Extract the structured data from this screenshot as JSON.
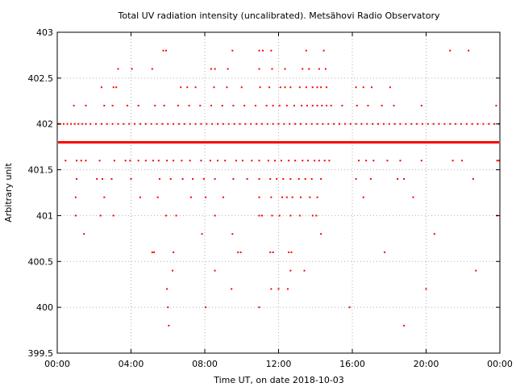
{
  "chart_data": {
    "type": "scatter",
    "title": "Total UV radiation intensity (uncalibrated). Metsähovi Radio Observatory",
    "xlabel": "Time UT, on date 2018-10-03",
    "ylabel": "Arbitrary unit",
    "xlim": [
      0,
      24
    ],
    "ylim": [
      399.5,
      403
    ],
    "x_ticks": [
      0,
      4,
      8,
      12,
      16,
      20,
      24
    ],
    "x_tick_labels": [
      "00:00",
      "04:00",
      "08:00",
      "12:00",
      "16:00",
      "20:00",
      "00:00"
    ],
    "y_ticks": [
      399.5,
      400,
      400.5,
      401,
      401.5,
      402,
      402.5,
      403
    ],
    "y_tick_labels": [
      "399.5",
      "400",
      "400.5",
      "401",
      "401.5",
      "402",
      "402.5",
      "403"
    ],
    "grid": true,
    "marker_color": "#ff0000",
    "series": [
      {
        "baseline_y": 401.8,
        "baseline_coverage": "continuous from 00:00 to 00:00",
        "points": [
          [
            0.05,
            402.0
          ],
          [
            0.15,
            402.0
          ],
          [
            0.35,
            402.0
          ],
          [
            0.55,
            402.0
          ],
          [
            0.75,
            402.0
          ],
          [
            0.95,
            402.0
          ],
          [
            1.15,
            402.0
          ],
          [
            1.35,
            402.0
          ],
          [
            1.55,
            402.0
          ],
          [
            1.8,
            402.0
          ],
          [
            2.1,
            402.0
          ],
          [
            2.4,
            402.0
          ],
          [
            2.7,
            402.0
          ],
          [
            3.0,
            402.0
          ],
          [
            3.3,
            402.0
          ],
          [
            3.6,
            402.0
          ],
          [
            3.9,
            402.0
          ],
          [
            4.2,
            402.0
          ],
          [
            4.5,
            402.0
          ],
          [
            4.8,
            402.0
          ],
          [
            5.1,
            402.0
          ],
          [
            5.4,
            402.0
          ],
          [
            5.7,
            402.0
          ],
          [
            6.0,
            402.0
          ],
          [
            6.3,
            402.0
          ],
          [
            6.6,
            402.0
          ],
          [
            6.9,
            402.0
          ],
          [
            7.2,
            402.0
          ],
          [
            7.5,
            402.0
          ],
          [
            7.8,
            402.0
          ],
          [
            8.1,
            402.0
          ],
          [
            8.4,
            402.0
          ],
          [
            8.7,
            402.0
          ],
          [
            9.0,
            402.0
          ],
          [
            9.3,
            402.0
          ],
          [
            9.6,
            402.0
          ],
          [
            9.9,
            402.0
          ],
          [
            10.2,
            402.0
          ],
          [
            10.5,
            402.0
          ],
          [
            10.8,
            402.0
          ],
          [
            11.1,
            402.0
          ],
          [
            11.4,
            402.0
          ],
          [
            11.7,
            402.0
          ],
          [
            12.0,
            402.0
          ],
          [
            12.3,
            402.0
          ],
          [
            12.6,
            402.0
          ],
          [
            12.9,
            402.0
          ],
          [
            13.2,
            402.0
          ],
          [
            13.5,
            402.0
          ],
          [
            13.8,
            402.0
          ],
          [
            14.1,
            402.0
          ],
          [
            14.4,
            402.0
          ],
          [
            14.7,
            402.0
          ],
          [
            15.0,
            402.0
          ],
          [
            15.3,
            402.0
          ],
          [
            15.6,
            402.0
          ],
          [
            15.9,
            402.0
          ],
          [
            16.2,
            402.0
          ],
          [
            16.5,
            402.0
          ],
          [
            16.8,
            402.0
          ],
          [
            17.1,
            402.0
          ],
          [
            17.4,
            402.0
          ],
          [
            17.7,
            402.0
          ],
          [
            18.0,
            402.0
          ],
          [
            18.3,
            402.0
          ],
          [
            18.6,
            402.0
          ],
          [
            18.9,
            402.0
          ],
          [
            19.2,
            402.0
          ],
          [
            19.5,
            402.0
          ],
          [
            19.8,
            402.0
          ],
          [
            20.1,
            402.0
          ],
          [
            20.4,
            402.0
          ],
          [
            20.7,
            402.0
          ],
          [
            21.0,
            402.0
          ],
          [
            21.3,
            402.0
          ],
          [
            21.6,
            402.0
          ],
          [
            21.9,
            402.0
          ],
          [
            22.2,
            402.0
          ],
          [
            22.5,
            402.0
          ],
          [
            22.8,
            402.0
          ],
          [
            23.1,
            402.0
          ],
          [
            23.4,
            402.0
          ],
          [
            23.7,
            402.0
          ],
          [
            23.95,
            402.0
          ],
          [
            0.9,
            402.2
          ],
          [
            1.55,
            402.2
          ],
          [
            2.55,
            402.2
          ],
          [
            3.0,
            402.2
          ],
          [
            3.8,
            402.2
          ],
          [
            4.4,
            402.2
          ],
          [
            5.3,
            402.2
          ],
          [
            5.8,
            402.2
          ],
          [
            6.55,
            402.2
          ],
          [
            7.15,
            402.2
          ],
          [
            7.75,
            402.2
          ],
          [
            8.35,
            402.2
          ],
          [
            8.95,
            402.2
          ],
          [
            9.55,
            402.2
          ],
          [
            10.15,
            402.2
          ],
          [
            10.75,
            402.2
          ],
          [
            11.35,
            402.2
          ],
          [
            11.7,
            402.2
          ],
          [
            12.05,
            402.2
          ],
          [
            12.45,
            402.2
          ],
          [
            12.85,
            402.2
          ],
          [
            13.25,
            402.2
          ],
          [
            13.55,
            402.2
          ],
          [
            13.85,
            402.2
          ],
          [
            14.1,
            402.2
          ],
          [
            14.35,
            402.2
          ],
          [
            14.6,
            402.2
          ],
          [
            14.85,
            402.2
          ],
          [
            15.45,
            402.2
          ],
          [
            16.25,
            402.2
          ],
          [
            16.85,
            402.2
          ],
          [
            17.6,
            402.2
          ],
          [
            18.25,
            402.2
          ],
          [
            19.75,
            402.2
          ],
          [
            23.8,
            402.2
          ],
          [
            2.4,
            402.4
          ],
          [
            3.05,
            402.4
          ],
          [
            3.2,
            402.4
          ],
          [
            6.7,
            402.4
          ],
          [
            7.05,
            402.4
          ],
          [
            7.5,
            402.4
          ],
          [
            8.5,
            402.4
          ],
          [
            9.2,
            402.4
          ],
          [
            10.0,
            402.4
          ],
          [
            11.0,
            402.4
          ],
          [
            11.5,
            402.4
          ],
          [
            12.1,
            402.4
          ],
          [
            12.35,
            402.4
          ],
          [
            12.65,
            402.4
          ],
          [
            13.15,
            402.4
          ],
          [
            13.5,
            402.4
          ],
          [
            13.85,
            402.4
          ],
          [
            14.1,
            402.4
          ],
          [
            14.3,
            402.4
          ],
          [
            14.6,
            402.4
          ],
          [
            16.2,
            402.4
          ],
          [
            16.6,
            402.4
          ],
          [
            17.05,
            402.4
          ],
          [
            18.05,
            402.4
          ],
          [
            3.3,
            402.6
          ],
          [
            4.05,
            402.6
          ],
          [
            5.15,
            402.6
          ],
          [
            9.25,
            402.6
          ],
          [
            10.95,
            402.6
          ],
          [
            11.65,
            402.6
          ],
          [
            12.35,
            402.6
          ],
          [
            13.3,
            402.6
          ],
          [
            13.65,
            402.6
          ],
          [
            14.2,
            402.6
          ],
          [
            14.55,
            402.6
          ],
          [
            8.35,
            402.6
          ],
          [
            8.55,
            402.6
          ],
          [
            5.75,
            402.8
          ],
          [
            5.9,
            402.8
          ],
          [
            9.5,
            402.8
          ],
          [
            10.95,
            402.8
          ],
          [
            11.15,
            402.8
          ],
          [
            11.6,
            402.8
          ],
          [
            13.5,
            402.8
          ],
          [
            14.45,
            402.8
          ],
          [
            21.3,
            402.8
          ],
          [
            22.3,
            402.8
          ],
          [
            0.45,
            401.6
          ],
          [
            1.05,
            401.6
          ],
          [
            1.3,
            401.6
          ],
          [
            1.55,
            401.6
          ],
          [
            2.3,
            401.6
          ],
          [
            3.1,
            401.6
          ],
          [
            3.7,
            401.6
          ],
          [
            3.95,
            401.6
          ],
          [
            4.4,
            401.6
          ],
          [
            4.8,
            401.6
          ],
          [
            5.2,
            401.6
          ],
          [
            5.5,
            401.6
          ],
          [
            5.95,
            401.6
          ],
          [
            6.3,
            401.6
          ],
          [
            6.75,
            401.6
          ],
          [
            7.2,
            401.6
          ],
          [
            7.8,
            401.6
          ],
          [
            8.3,
            401.6
          ],
          [
            8.7,
            401.6
          ],
          [
            9.1,
            401.6
          ],
          [
            9.7,
            401.6
          ],
          [
            10.05,
            401.6
          ],
          [
            10.55,
            401.6
          ],
          [
            10.95,
            401.6
          ],
          [
            11.45,
            401.6
          ],
          [
            11.8,
            401.6
          ],
          [
            12.15,
            401.6
          ],
          [
            12.55,
            401.6
          ],
          [
            12.9,
            401.6
          ],
          [
            13.3,
            401.6
          ],
          [
            13.6,
            401.6
          ],
          [
            13.95,
            401.6
          ],
          [
            14.2,
            401.6
          ],
          [
            14.5,
            401.6
          ],
          [
            14.75,
            401.6
          ],
          [
            16.35,
            401.6
          ],
          [
            16.75,
            401.6
          ],
          [
            17.15,
            401.6
          ],
          [
            17.9,
            401.6
          ],
          [
            18.6,
            401.6
          ],
          [
            19.75,
            401.6
          ],
          [
            21.45,
            401.6
          ],
          [
            21.95,
            401.6
          ],
          [
            23.85,
            401.6
          ],
          [
            23.95,
            401.6
          ],
          [
            1.05,
            401.4
          ],
          [
            2.15,
            401.4
          ],
          [
            2.45,
            401.4
          ],
          [
            2.95,
            401.4
          ],
          [
            4.0,
            401.4
          ],
          [
            5.55,
            401.4
          ],
          [
            6.15,
            401.4
          ],
          [
            6.8,
            401.4
          ],
          [
            7.35,
            401.4
          ],
          [
            7.95,
            401.4
          ],
          [
            8.55,
            401.4
          ],
          [
            9.55,
            401.4
          ],
          [
            10.3,
            401.4
          ],
          [
            10.95,
            401.4
          ],
          [
            11.55,
            401.4
          ],
          [
            11.9,
            401.4
          ],
          [
            12.25,
            401.4
          ],
          [
            12.65,
            401.4
          ],
          [
            13.1,
            401.4
          ],
          [
            13.45,
            401.4
          ],
          [
            13.8,
            401.4
          ],
          [
            14.3,
            401.4
          ],
          [
            16.2,
            401.4
          ],
          [
            17.0,
            401.4
          ],
          [
            18.45,
            401.4
          ],
          [
            18.8,
            401.4
          ],
          [
            22.55,
            401.4
          ],
          [
            1.0,
            401.2
          ],
          [
            2.55,
            401.2
          ],
          [
            4.5,
            401.2
          ],
          [
            5.45,
            401.2
          ],
          [
            7.25,
            401.2
          ],
          [
            8.05,
            401.2
          ],
          [
            9.0,
            401.2
          ],
          [
            10.95,
            401.2
          ],
          [
            11.6,
            401.2
          ],
          [
            12.2,
            401.2
          ],
          [
            12.45,
            401.2
          ],
          [
            12.75,
            401.2
          ],
          [
            13.2,
            401.2
          ],
          [
            13.7,
            401.2
          ],
          [
            14.1,
            401.2
          ],
          [
            16.6,
            401.2
          ],
          [
            19.3,
            401.2
          ],
          [
            1.0,
            401.0
          ],
          [
            2.35,
            401.0
          ],
          [
            3.05,
            401.0
          ],
          [
            5.9,
            401.0
          ],
          [
            6.45,
            401.0
          ],
          [
            8.55,
            401.0
          ],
          [
            10.95,
            401.0
          ],
          [
            11.1,
            401.0
          ],
          [
            11.65,
            401.0
          ],
          [
            12.05,
            401.0
          ],
          [
            12.65,
            401.0
          ],
          [
            13.15,
            401.0
          ],
          [
            13.85,
            401.0
          ],
          [
            14.05,
            401.0
          ],
          [
            23.85,
            401.0
          ],
          [
            1.45,
            400.8
          ],
          [
            7.85,
            400.8
          ],
          [
            9.5,
            400.8
          ],
          [
            14.3,
            400.8
          ],
          [
            20.45,
            400.8
          ],
          [
            5.15,
            400.6
          ],
          [
            5.25,
            400.6
          ],
          [
            6.3,
            400.6
          ],
          [
            9.8,
            400.6
          ],
          [
            9.95,
            400.6
          ],
          [
            11.55,
            400.6
          ],
          [
            11.7,
            400.6
          ],
          [
            12.55,
            400.6
          ],
          [
            12.7,
            400.6
          ],
          [
            17.75,
            400.6
          ],
          [
            6.25,
            400.4
          ],
          [
            8.55,
            400.4
          ],
          [
            12.65,
            400.4
          ],
          [
            13.4,
            400.4
          ],
          [
            22.7,
            400.4
          ],
          [
            5.95,
            400.2
          ],
          [
            9.45,
            400.2
          ],
          [
            11.6,
            400.2
          ],
          [
            12.0,
            400.2
          ],
          [
            12.5,
            400.2
          ],
          [
            20.0,
            400.2
          ],
          [
            6.0,
            400.0
          ],
          [
            8.05,
            400.0
          ],
          [
            10.95,
            400.0
          ],
          [
            15.85,
            400.0
          ],
          [
            6.05,
            399.8
          ],
          [
            18.8,
            399.8
          ]
        ]
      }
    ]
  }
}
